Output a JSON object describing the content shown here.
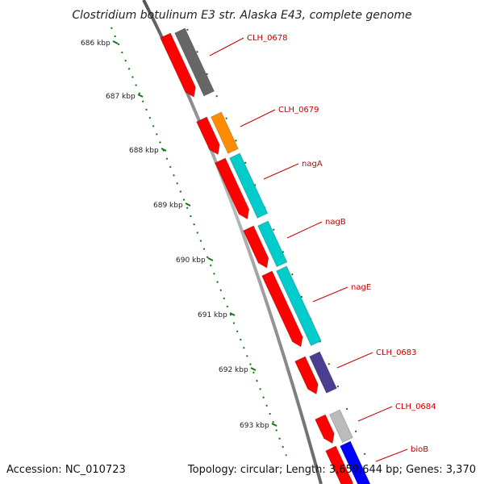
{
  "title": "Clostridium botulinum E3 str. Alaska E43, complete genome",
  "footer": {
    "accession": "Accession: NC_010723",
    "topology": "Topology: circular; Length: 3,659,644 bp; Genes: 3,370"
  },
  "ticks": [
    {
      "label": "686 kbp"
    },
    {
      "label": "687 kbp"
    },
    {
      "label": "688 kbp"
    },
    {
      "label": "689 kbp"
    },
    {
      "label": "690 kbp"
    },
    {
      "label": "691 kbp"
    },
    {
      "label": "692 kbp"
    },
    {
      "label": "693 kbp"
    }
  ],
  "genes": [
    {
      "label": "CLH_0678",
      "color": "#666666"
    },
    {
      "label": "CLH_0679",
      "color": "#ff8c00"
    },
    {
      "label": "nagA",
      "color": "#00cccc"
    },
    {
      "label": "nagB",
      "color": "#00cccc"
    },
    {
      "label": "nagE",
      "color": "#00cccc"
    },
    {
      "label": "CLH_0683",
      "color": "#4b3d8f"
    },
    {
      "label": "CLH_0684",
      "color": "#bbbbbb"
    },
    {
      "label": "bioB",
      "color": "#0000ff"
    }
  ],
  "colors": {
    "cds": "#ff0000",
    "backbone": "#888888",
    "tick": "#117711"
  }
}
